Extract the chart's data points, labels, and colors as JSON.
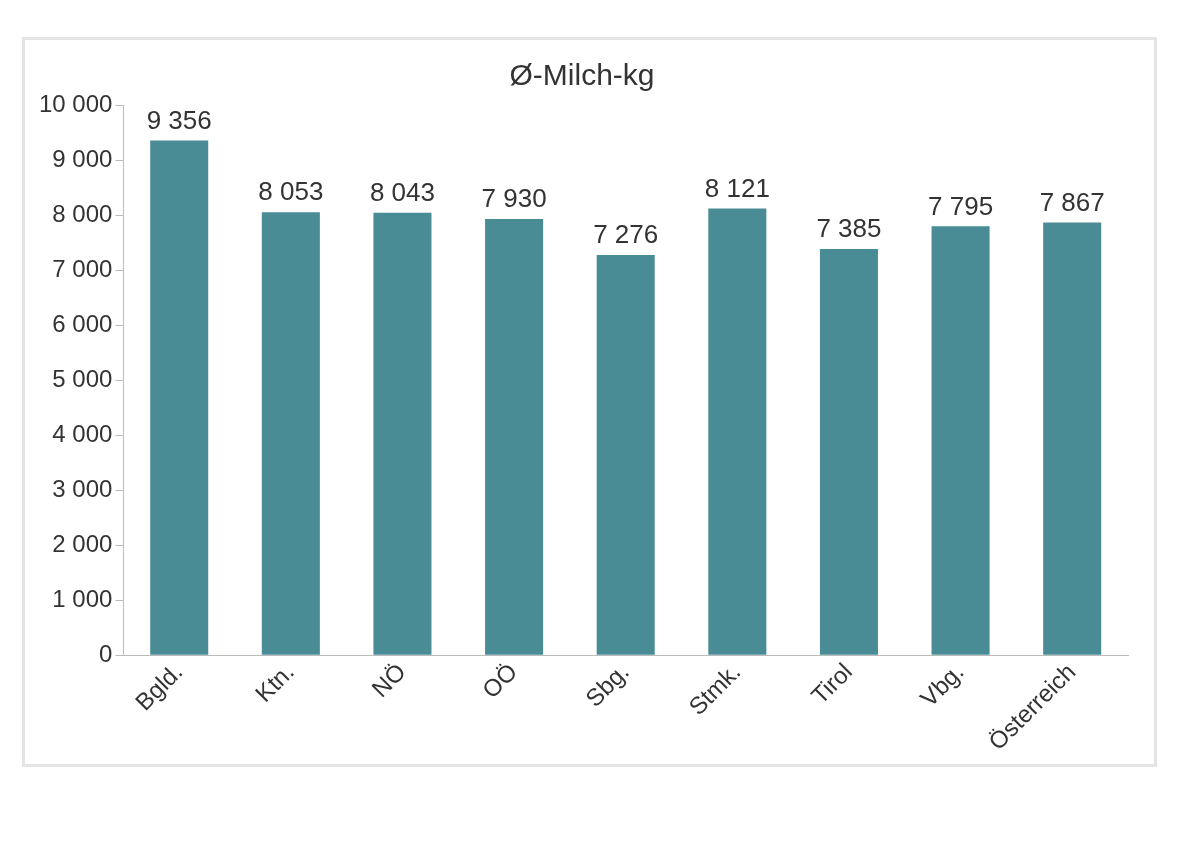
{
  "chart_data": {
    "type": "bar",
    "title": "Ø-Milch-kg",
    "categories": [
      "Bgld.",
      "Ktn.",
      "NÖ",
      "OÖ",
      "Sbg.",
      "Stmk.",
      "Tirol",
      "Vbg.",
      "Österreich"
    ],
    "values": [
      9356,
      8053,
      8043,
      7930,
      7276,
      8121,
      7385,
      7795,
      7867
    ],
    "value_labels": [
      "9 356",
      "8 053",
      "8 043",
      "7 930",
      "7 276",
      "8 121",
      "7 385",
      "7 795",
      "7 867"
    ],
    "color": "#4a8c96",
    "ylim": [
      0,
      10000
    ],
    "yticks": [
      {
        "value": 0,
        "label": "0"
      },
      {
        "value": 1000,
        "label": "1 000"
      },
      {
        "value": 2000,
        "label": "2 000"
      },
      {
        "value": 3000,
        "label": "3 000"
      },
      {
        "value": 4000,
        "label": "4 000"
      },
      {
        "value": 5000,
        "label": "5 000"
      },
      {
        "value": 6000,
        "label": "6 000"
      },
      {
        "value": 7000,
        "label": "7 000"
      },
      {
        "value": 8000,
        "label": "8 000"
      },
      {
        "value": 9000,
        "label": "9 000"
      },
      {
        "value": 10000,
        "label": "10 000"
      }
    ],
    "grid": false,
    "legend": false
  }
}
